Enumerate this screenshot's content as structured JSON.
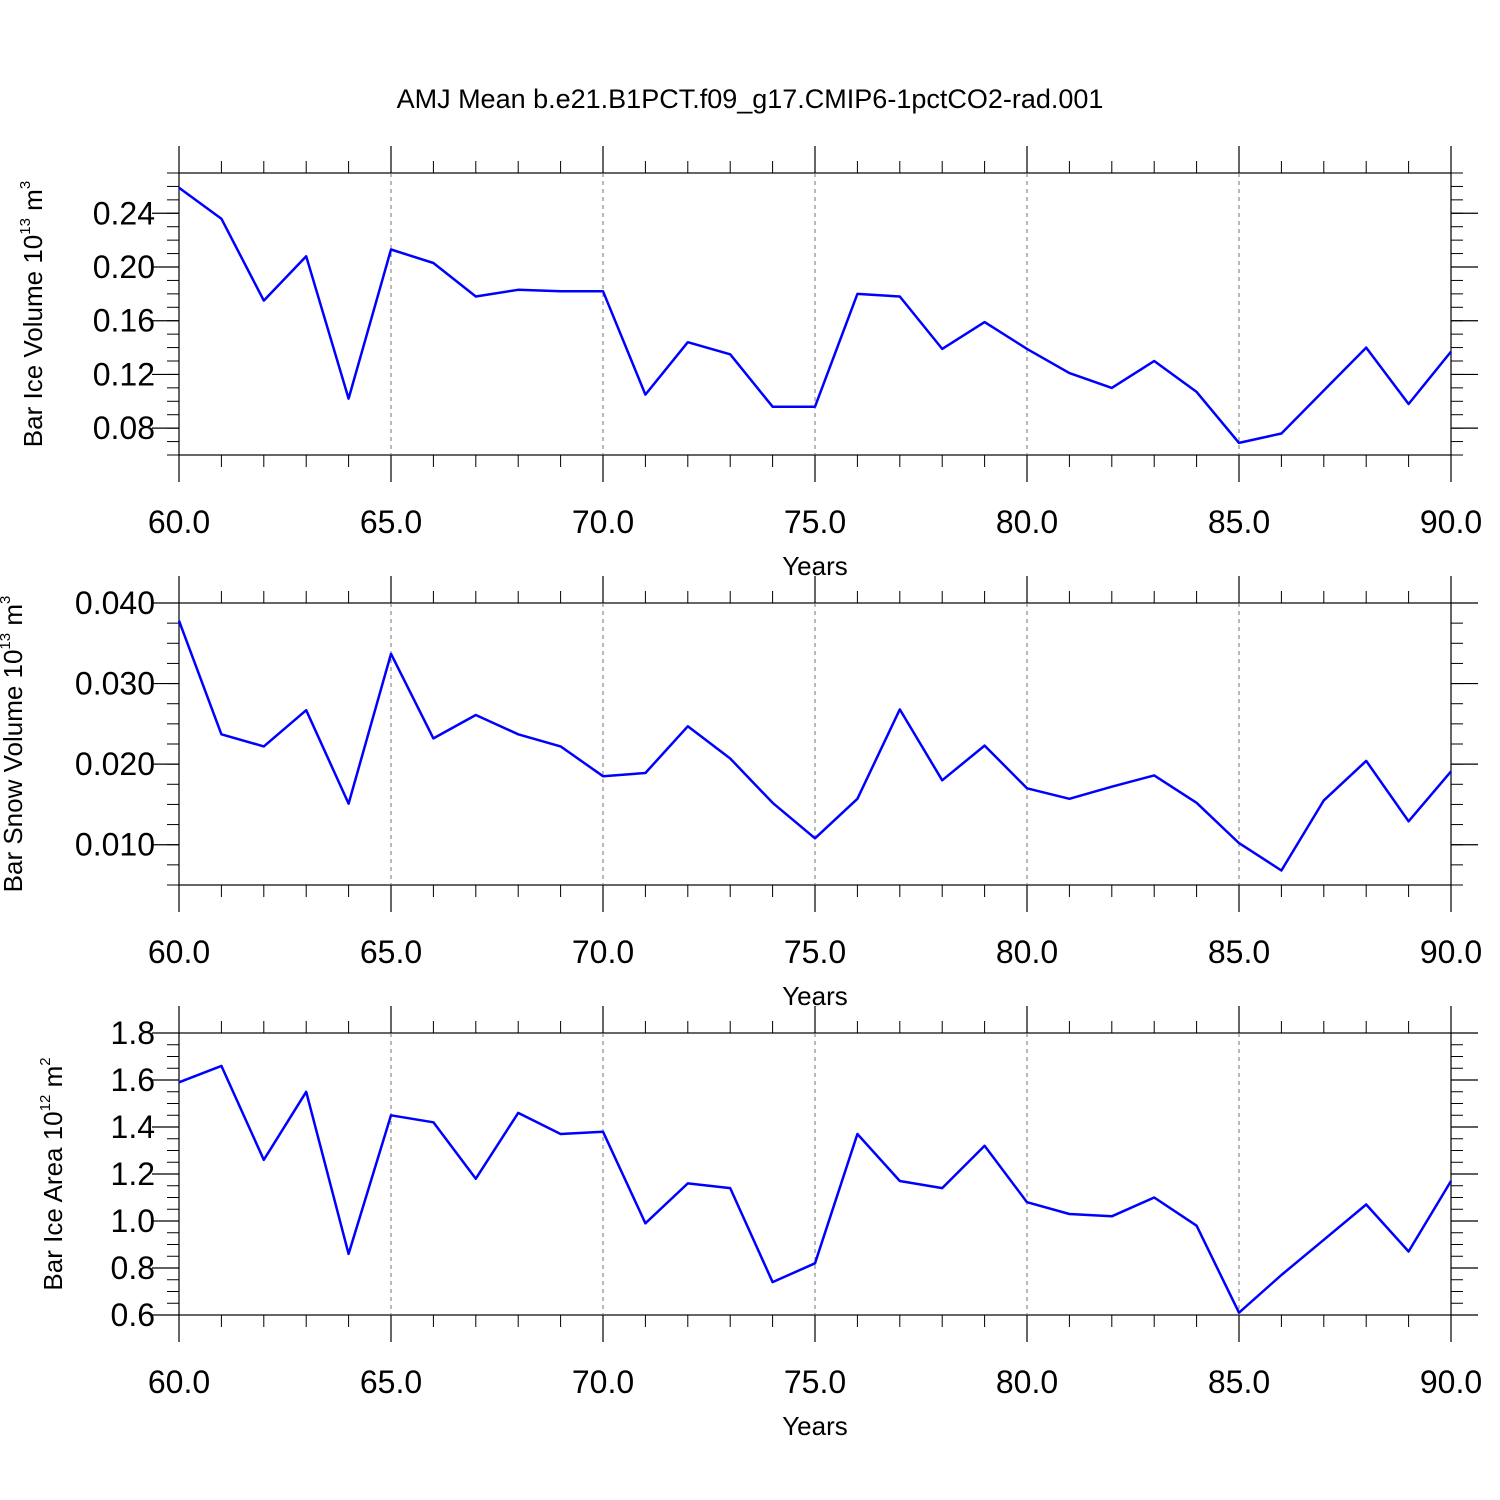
{
  "title": "AMJ Mean b.e21.B1PCT.f09_g17.CMIP6-1pctCO2-rad.001",
  "line_color": "#0000ff",
  "grid": "vertical dashed at major x ticks",
  "chart_data": [
    {
      "type": "line",
      "title": "",
      "xlabel": "Years",
      "ylabel": {
        "text": "Bar Ice Volume 10",
        "sup": "13",
        "unit": " m",
        "unit_sup": "3"
      },
      "xlim": [
        60,
        90
      ],
      "ylim": [
        0.06,
        0.27
      ],
      "xticks": [
        "60.0",
        "65.0",
        "70.0",
        "75.0",
        "80.0",
        "85.0",
        "90.0"
      ],
      "yticks": [
        "0.08",
        "0.12",
        "0.16",
        "0.20",
        "0.24"
      ],
      "ytick_values": [
        0.08,
        0.12,
        0.16,
        0.2,
        0.24
      ],
      "x": [
        60,
        61,
        62,
        63,
        64,
        65,
        66,
        67,
        68,
        69,
        70,
        71,
        72,
        73,
        74,
        75,
        76,
        77,
        78,
        79,
        80,
        81,
        82,
        83,
        84,
        85,
        86,
        87,
        88,
        89,
        90
      ],
      "y": [
        0.259,
        0.236,
        0.175,
        0.208,
        0.102,
        0.213,
        0.203,
        0.178,
        0.183,
        0.182,
        0.182,
        0.105,
        0.144,
        0.135,
        0.096,
        0.096,
        0.18,
        0.178,
        0.139,
        0.159,
        0.139,
        0.121,
        0.11,
        0.13,
        0.107,
        0.069,
        0.076,
        0.108,
        0.14,
        0.098,
        0.137
      ]
    },
    {
      "type": "line",
      "title": "",
      "xlabel": "Years",
      "ylabel": {
        "text": "Bar Snow Volume 10",
        "sup": "13",
        "unit": " m",
        "unit_sup": "3"
      },
      "xlim": [
        60,
        90
      ],
      "ylim": [
        0.005,
        0.04
      ],
      "xticks": [
        "60.0",
        "65.0",
        "70.0",
        "75.0",
        "80.0",
        "85.0",
        "90.0"
      ],
      "yticks": [
        "0.010",
        "0.020",
        "0.030",
        "0.040"
      ],
      "ytick_values": [
        0.01,
        0.02,
        0.03,
        0.04
      ],
      "x": [
        60,
        61,
        62,
        63,
        64,
        65,
        66,
        67,
        68,
        69,
        70,
        71,
        72,
        73,
        74,
        75,
        76,
        77,
        78,
        79,
        80,
        81,
        82,
        83,
        84,
        85,
        86,
        87,
        88,
        89,
        90
      ],
      "y": [
        0.0378,
        0.0237,
        0.0222,
        0.0267,
        0.0151,
        0.0337,
        0.0232,
        0.0261,
        0.0237,
        0.0222,
        0.0185,
        0.0189,
        0.0247,
        0.0207,
        0.0152,
        0.0108,
        0.0157,
        0.0268,
        0.018,
        0.0223,
        0.017,
        0.0157,
        0.0172,
        0.0186,
        0.0152,
        0.0102,
        0.0068,
        0.0155,
        0.0204,
        0.0129,
        0.0191
      ]
    },
    {
      "type": "line",
      "title": "",
      "xlabel": "Years",
      "ylabel": {
        "text": "Bar Ice Area 10",
        "sup": "12",
        "unit": " m",
        "unit_sup": "2"
      },
      "xlim": [
        60,
        90
      ],
      "ylim": [
        0.6,
        1.8
      ],
      "xticks": [
        "60.0",
        "65.0",
        "70.0",
        "75.0",
        "80.0",
        "85.0",
        "90.0"
      ],
      "yticks": [
        "0.6",
        "0.8",
        "1.0",
        "1.2",
        "1.4",
        "1.6",
        "1.8"
      ],
      "ytick_values": [
        0.6,
        0.8,
        1.0,
        1.2,
        1.4,
        1.6,
        1.8
      ],
      "x": [
        60,
        61,
        62,
        63,
        64,
        65,
        66,
        67,
        68,
        69,
        70,
        71,
        72,
        73,
        74,
        75,
        76,
        77,
        78,
        79,
        80,
        81,
        82,
        83,
        84,
        85,
        86,
        87,
        88,
        89,
        90
      ],
      "y": [
        1.59,
        1.66,
        1.26,
        1.55,
        0.86,
        1.45,
        1.42,
        1.18,
        1.46,
        1.37,
        1.38,
        0.99,
        1.16,
        1.14,
        0.74,
        0.82,
        1.37,
        1.17,
        1.14,
        1.32,
        1.08,
        1.03,
        1.02,
        1.1,
        0.98,
        0.61,
        0.77,
        0.92,
        1.07,
        0.87,
        1.17
      ]
    }
  ]
}
